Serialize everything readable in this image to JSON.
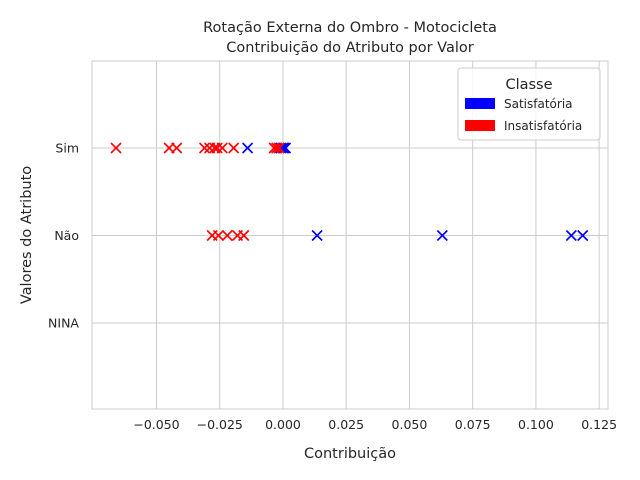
{
  "chart_data": {
    "type": "scatter",
    "title_lines": [
      "Rotação Externa do Ombro - Motocicleta",
      "Contribuição do Atributo por Valor"
    ],
    "xlabel": "Contribuição",
    "ylabel": "Valores do Atributo",
    "xlim": [
      -0.0755,
      0.1285
    ],
    "x_ticks": [
      -0.05,
      -0.025,
      0.0,
      0.025,
      0.05,
      0.075,
      0.1,
      0.125
    ],
    "x_tick_labels": [
      "−0.050",
      "−0.025",
      "0.000",
      "0.025",
      "0.050",
      "0.075",
      "0.100",
      "0.125"
    ],
    "categories": [
      "Sim",
      "Não",
      "NINA"
    ],
    "grid": true,
    "marker": "x",
    "legend": {
      "title": "Classe",
      "position": "top-right",
      "entries": [
        {
          "label": "Satisfatória",
          "color": "#0000ff"
        },
        {
          "label": "Insatisfatória",
          "color": "#ff0000"
        }
      ]
    },
    "series": [
      {
        "name": "Satisfatória",
        "color": "#0000ff",
        "points": [
          {
            "category": "Sim",
            "x": -0.014
          },
          {
            "category": "Sim",
            "x": -0.0015
          },
          {
            "category": "Sim",
            "x": -0.0008
          },
          {
            "category": "Sim",
            "x": 0.0
          },
          {
            "category": "Sim",
            "x": 0.0005
          },
          {
            "category": "Sim",
            "x": 0.001
          },
          {
            "category": "Não",
            "x": 0.0135
          },
          {
            "category": "Não",
            "x": 0.063
          },
          {
            "category": "Não",
            "x": 0.114
          },
          {
            "category": "Não",
            "x": 0.1185
          }
        ]
      },
      {
        "name": "Insatisfatória",
        "color": "#ff0000",
        "points": [
          {
            "category": "Sim",
            "x": -0.066
          },
          {
            "category": "Sim",
            "x": -0.045
          },
          {
            "category": "Sim",
            "x": -0.042
          },
          {
            "category": "Sim",
            "x": -0.031
          },
          {
            "category": "Sim",
            "x": -0.029
          },
          {
            "category": "Sim",
            "x": -0.027
          },
          {
            "category": "Sim",
            "x": -0.026
          },
          {
            "category": "Sim",
            "x": -0.024
          },
          {
            "category": "Sim",
            "x": -0.0195
          },
          {
            "category": "Sim",
            "x": -0.0035
          },
          {
            "category": "Sim",
            "x": -0.0025
          },
          {
            "category": "Sim",
            "x": -0.0015
          },
          {
            "category": "Não",
            "x": -0.028
          },
          {
            "category": "Não",
            "x": -0.0255
          },
          {
            "category": "Não",
            "x": -0.022
          },
          {
            "category": "Não",
            "x": -0.018
          },
          {
            "category": "Não",
            "x": -0.0155
          }
        ]
      }
    ]
  }
}
